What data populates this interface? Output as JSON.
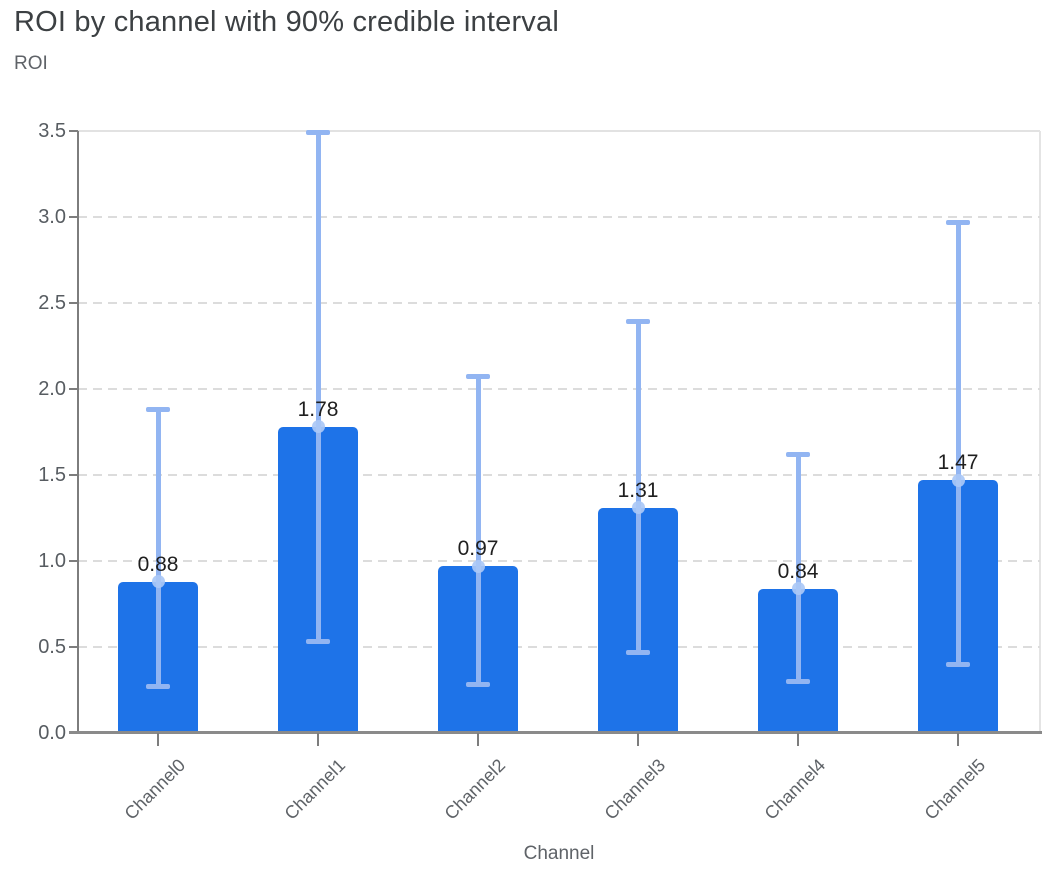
{
  "header": {
    "title": "ROI by channel with 90% credible interval",
    "y_axis_title": "ROI"
  },
  "chart_data": {
    "type": "bar",
    "title": "ROI by channel with 90% credible interval",
    "xlabel": "Channel",
    "ylabel": "ROI",
    "categories": [
      "Channel0",
      "Channel1",
      "Channel2",
      "Channel3",
      "Channel4",
      "Channel5"
    ],
    "values": [
      0.88,
      1.78,
      0.97,
      1.31,
      0.84,
      1.47
    ],
    "value_labels": [
      "0.88",
      "1.78",
      "0.97",
      "1.31",
      "0.84",
      "1.47"
    ],
    "error_low": [
      0.27,
      0.53,
      0.28,
      0.47,
      0.3,
      0.4
    ],
    "error_high": [
      1.88,
      3.49,
      2.07,
      2.39,
      1.62,
      2.97
    ],
    "error_bar_meaning": "90% credible interval",
    "ylim": [
      0,
      3.5
    ],
    "y_ticks": [
      0,
      0.5,
      1.0,
      1.5,
      2.0,
      2.5,
      3.0,
      3.5
    ],
    "y_tick_labels": [
      "0.0",
      "0.5",
      "1.0",
      "1.5",
      "2.0",
      "2.5",
      "3.0",
      "3.5"
    ],
    "grid": "horizontal-dashed",
    "legend": "none",
    "colors": {
      "bar": "#1e73e8",
      "error_bar": "#92b5f2",
      "mean_marker": "#aac8f6",
      "gridline": "#dcdcdc",
      "axis_line": "#8a8a8a",
      "title_text": "#3c4043",
      "axis_text": "#5f6368",
      "value_label_text": "#1f1f1f"
    }
  }
}
